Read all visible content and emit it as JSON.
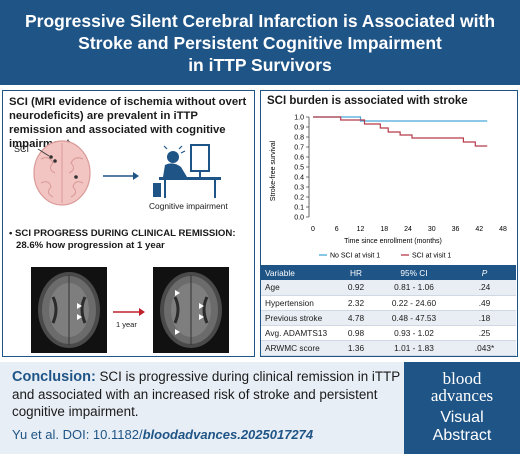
{
  "header": {
    "title_line1": "Progressive Silent Cerebral Infarction is Associated with",
    "title_line2": "Stroke and Persistent Cognitive Impairment",
    "title_line3": "in iTTP Survivors"
  },
  "left_panel": {
    "heading": "SCI (MRI evidence of ischemia without overt neurodeficits) are prevalent in iTTP remission and associated with cognitive impairment",
    "brain_label": "SCI",
    "cognitive_label": "Cognitive impairment",
    "bullet": "• SCI PROGRESS DURING CLINICAL REMISSION:",
    "bullet_detail": "28.6% how progression at 1 year",
    "arrow_label": "1 year"
  },
  "right_panel": {
    "heading": "SCI burden is associated with stroke"
  },
  "colors": {
    "brand_blue": "#1f5486",
    "no_sci_series": "#49a7d9",
    "sci_series": "#b83b4a"
  },
  "chart_data": {
    "type": "line",
    "title": "",
    "xlabel": "Time since enrollment (months)",
    "ylabel": "Stroke-free survival",
    "xlim": [
      0,
      48
    ],
    "ylim": [
      0,
      1.0
    ],
    "x_ticks": [
      "0",
      "6",
      "12",
      "18",
      "24",
      "30",
      "36",
      "42",
      "48"
    ],
    "y_ticks": [
      "0.0",
      "0.1",
      "0.2",
      "0.3",
      "0.4",
      "0.5",
      "0.6",
      "0.7",
      "0.8",
      "0.9",
      "1.0"
    ],
    "legend_position": "bottom",
    "series": [
      {
        "name": "No SCI at visit 1",
        "color": "#49a7d9",
        "x": [
          0,
          12,
          12,
          44
        ],
        "y": [
          1.0,
          1.0,
          0.96,
          0.96
        ]
      },
      {
        "name": "SCI at visit 1",
        "color": "#b83b4a",
        "x": [
          0,
          7,
          7,
          13,
          13,
          17,
          17,
          19,
          19,
          22,
          22,
          25,
          25,
          38,
          38,
          41,
          41,
          44
        ],
        "y": [
          1.0,
          1.0,
          0.97,
          0.97,
          0.93,
          0.93,
          0.89,
          0.89,
          0.85,
          0.85,
          0.82,
          0.82,
          0.79,
          0.79,
          0.75,
          0.75,
          0.71,
          0.71
        ]
      }
    ]
  },
  "table": {
    "headers": [
      "Variable",
      "HR",
      "95% CI",
      "P"
    ],
    "rows": [
      [
        "Age",
        "0.92",
        "0.81 - 1.06",
        ".24"
      ],
      [
        "Hypertension",
        "2.32",
        "0.22 - 24.60",
        ".49"
      ],
      [
        "Previous stroke",
        "4.78",
        "0.48 - 47.53",
        ".18"
      ],
      [
        "Avg. ADAMTS13",
        "0.98",
        "0.93 - 1.02",
        ".25"
      ],
      [
        "ARWMC score",
        "1.36",
        "1.01 - 1.83",
        ".043*"
      ]
    ]
  },
  "conclusion": {
    "label": "Conclusion:",
    "text": " SCI is progressive during clinical remission in iTTP and associated with an increased risk of stroke and persistent cognitive impairment.",
    "citation_prefix": "Yu et al. DOI: 10.1182/",
    "citation_doi": "bloodadvances.2025017274"
  },
  "logo": {
    "line1": "blood",
    "line2": "advances",
    "line3": "Visual",
    "line4": "Abstract"
  }
}
